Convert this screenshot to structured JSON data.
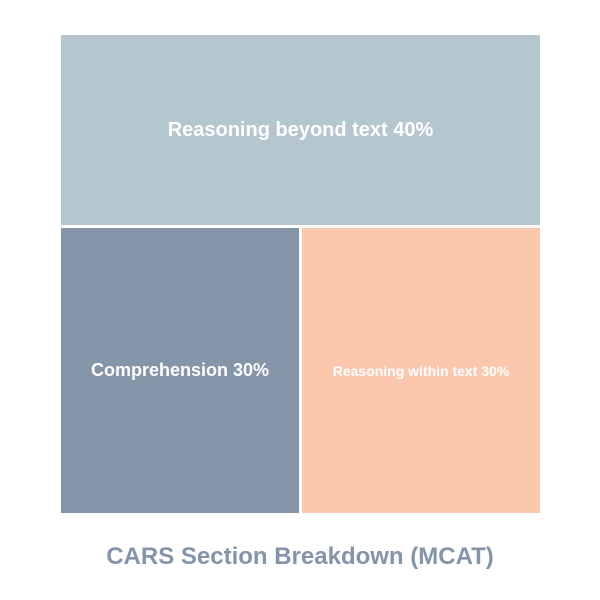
{
  "chart_data": {
    "type": "treemap",
    "title": "CARS Section Breakdown (MCAT)",
    "title_color": "#8494ab",
    "background_color": "#ffffff",
    "gutter_color": "#ffffff",
    "items": [
      {
        "label": "Reasoning beyond text",
        "value": 40,
        "unit": "%",
        "display": "Reasoning beyond text 40%",
        "color": "#b5c6cf",
        "text_color": "#ffffff"
      },
      {
        "label": "Comprehension",
        "value": 30,
        "unit": "%",
        "display": "Comprehension 30%",
        "color": "#8595a8",
        "text_color": "#ffffff"
      },
      {
        "label": "Reasoning within text",
        "value": 30,
        "unit": "%",
        "display": "Reasoning within text 30%",
        "color": "#fbc8ae",
        "text_color": "#ffffff"
      }
    ]
  }
}
